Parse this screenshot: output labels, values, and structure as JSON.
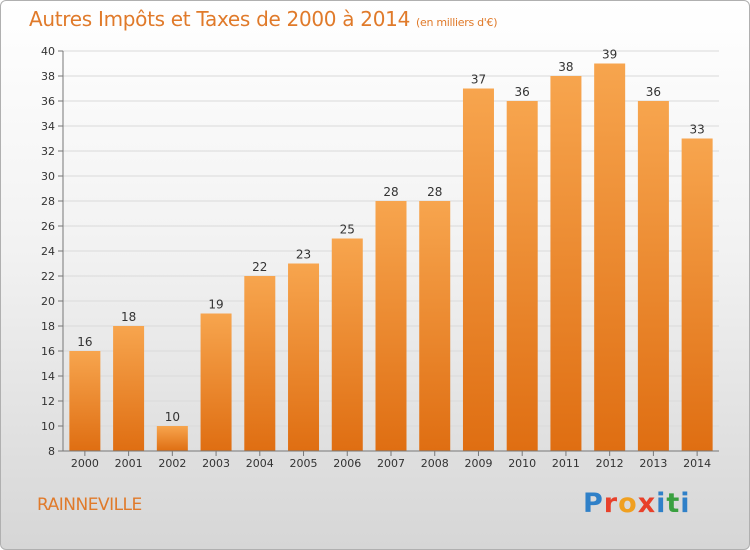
{
  "title": "Autres Impôts et Taxes de 2000 à 2014",
  "title_unit": "(en milliers d'€)",
  "place": "RAINNEVILLE",
  "logo": {
    "text": "Proxiti",
    "letter_colors": [
      "#2f80c8",
      "#e8402a",
      "#f0a020",
      "#e8402a",
      "#2f80c8",
      "#3aa040",
      "#2f80c8"
    ]
  },
  "colors": {
    "bar_top": "#f7a54e",
    "bar_bottom": "#df6e12",
    "accent": "#e07a2a"
  },
  "chart_data": {
    "type": "bar",
    "title": "Autres Impôts et Taxes de 2000 à 2014",
    "subtitle": "(en milliers d'€)",
    "categories": [
      "2000",
      "2001",
      "2002",
      "2003",
      "2004",
      "2005",
      "2006",
      "2007",
      "2008",
      "2009",
      "2010",
      "2011",
      "2012",
      "2013",
      "2014"
    ],
    "values": [
      16,
      18,
      10,
      19,
      22,
      23,
      25,
      28,
      28,
      37,
      36,
      38,
      39,
      36,
      33
    ],
    "ylim": [
      8,
      40
    ],
    "yticks": [
      8,
      10,
      12,
      14,
      16,
      18,
      20,
      22,
      24,
      26,
      28,
      30,
      32,
      34,
      36,
      38,
      40
    ],
    "grid": true,
    "data_labels": true
  }
}
